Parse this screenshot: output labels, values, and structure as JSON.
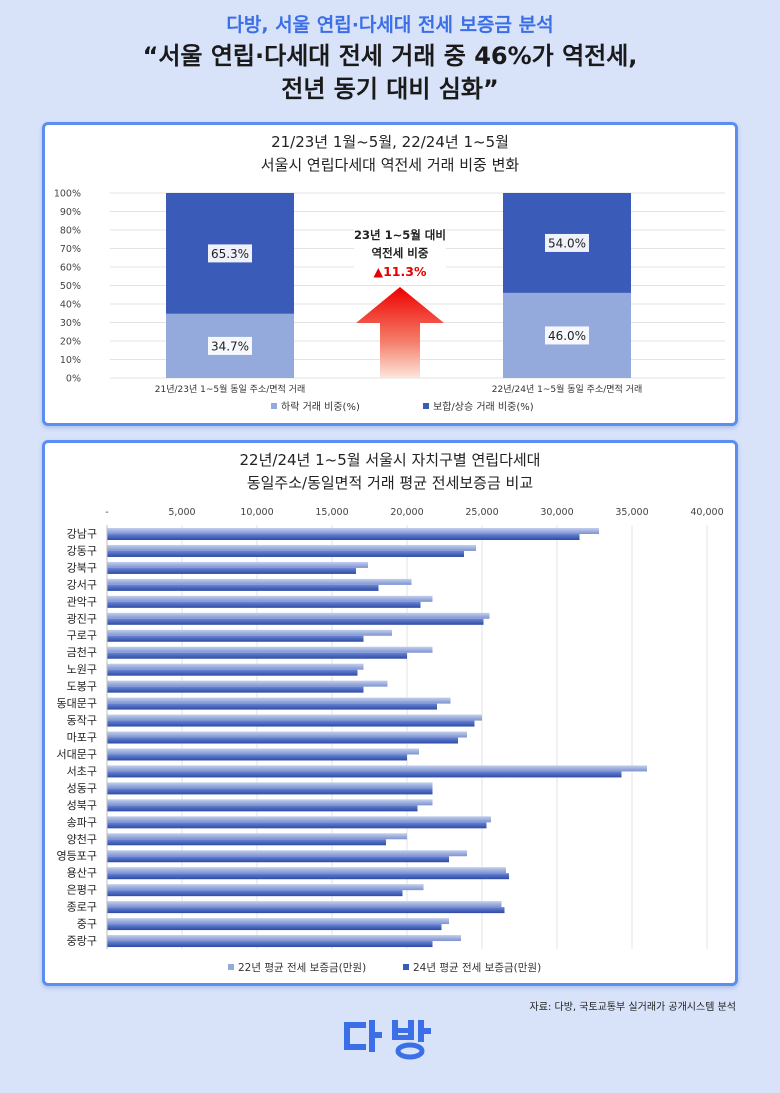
{
  "header": {
    "subtitle": "다방, 서울 연립·다세대 전세 보증금 분석",
    "headline_line1": "“서울 연립·다세대 전세 거래 중 46%가 역전세,",
    "headline_line2": "전년 동기 대비 심화”"
  },
  "colors": {
    "background": "#d8e3fa",
    "accent": "#3b6fe8",
    "card_border": "#5b8ef2",
    "light_series": "#95aadc",
    "dark_series": "#3a5bb8",
    "arrow_red": "#e60000"
  },
  "chart_data": [
    {
      "type": "bar",
      "stacked": true,
      "title_line1": "21/23년 1월~5월, 22/24년 1~5월",
      "title_line2": "서울시 연립다세대 역전세 거래 비중 변화",
      "categories": [
        "21년/23년 1~5월 동일 주소/면적 거래",
        "22년/24년 1~5월 동일 주소/면적 거래"
      ],
      "series": [
        {
          "name": "하락 거래 비중(%)",
          "values": [
            34.7,
            46.0
          ]
        },
        {
          "name": "보합/상승 거래 비중(%)",
          "values": [
            65.3,
            54.0
          ]
        }
      ],
      "data_labels": [
        [
          "34.7%",
          "46.0%"
        ],
        [
          "65.3%",
          "54.0%"
        ]
      ],
      "y_ticks": [
        "0%",
        "10%",
        "20%",
        "30%",
        "40%",
        "50%",
        "60%",
        "70%",
        "80%",
        "90%",
        "100%"
      ],
      "ylim": [
        0,
        100
      ],
      "grid": true,
      "legend": "bottom",
      "annotation": {
        "line1": "23년 1~5월 대비",
        "line2": "역전세 비중",
        "change": "▲11.3%"
      }
    },
    {
      "type": "bar",
      "orientation": "horizontal",
      "title_line1": "22년/24년 1~5월 서울시 자치구별 연립다세대",
      "title_line2": "동일주소/동일면적 거래 평균 전세보증금 비교",
      "categories": [
        "강남구",
        "강동구",
        "강북구",
        "강서구",
        "관악구",
        "광진구",
        "구로구",
        "금천구",
        "노원구",
        "도봉구",
        "동대문구",
        "동작구",
        "마포구",
        "서대문구",
        "서초구",
        "성동구",
        "성북구",
        "송파구",
        "양천구",
        "영등포구",
        "용산구",
        "은평구",
        "종로구",
        "중구",
        "중랑구"
      ],
      "series": [
        {
          "name": "22년 평균 전세 보증금(만원)",
          "values": [
            32800,
            24600,
            17400,
            20300,
            21700,
            25500,
            19000,
            21700,
            17100,
            18700,
            22900,
            25000,
            24000,
            20800,
            36000,
            21700,
            21700,
            25600,
            20000,
            24000,
            26600,
            21100,
            26300,
            22800,
            23600
          ]
        },
        {
          "name": "24년 평균 전세 보증금(만원)",
          "values": [
            31500,
            23800,
            16600,
            18100,
            20900,
            25100,
            17100,
            20000,
            16700,
            17100,
            22000,
            24500,
            23400,
            20000,
            34300,
            21700,
            20700,
            25300,
            18600,
            22800,
            26800,
            19700,
            26500,
            22300,
            21700
          ]
        }
      ],
      "x_ticks": [
        "-",
        "5,000",
        "10,000",
        "15,000",
        "20,000",
        "25,000",
        "30,000",
        "35,000",
        "40,000"
      ],
      "xlim": [
        0,
        40000
      ],
      "grid": true,
      "legend": "bottom"
    }
  ],
  "footer": {
    "source": "자료: 다방, 국토교통부 실거래가 공개시스템 분석",
    "logo_text": "다방"
  }
}
